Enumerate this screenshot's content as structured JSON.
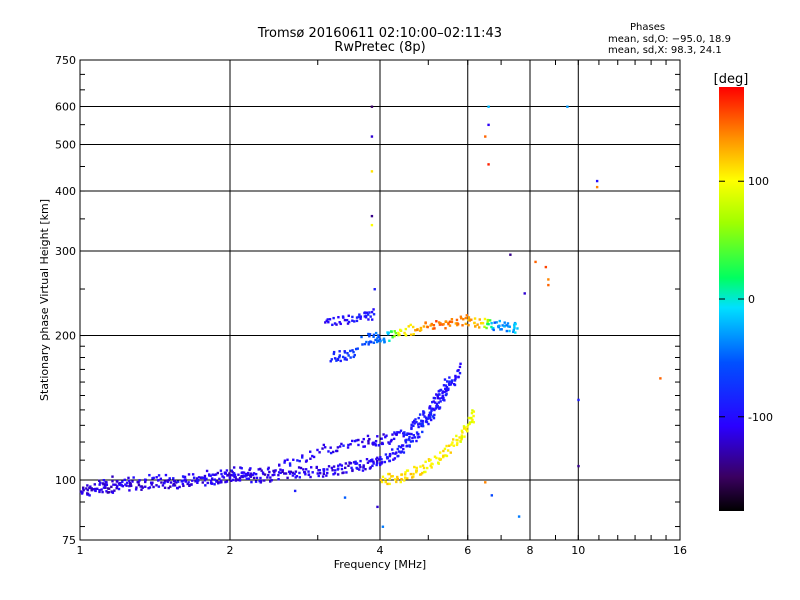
{
  "header": {
    "title": "Tromsø 20160611 02:10:00–02:11:43",
    "subtitle": "RwPretec (8p)"
  },
  "phases_box": {
    "title": "Phases",
    "line_o": "mean, sd,O: −95.0, 18.9",
    "line_x": "mean, sd,X:  98.3, 24.1"
  },
  "colorbar": {
    "unit": "[deg]",
    "range": [
      -180,
      180
    ],
    "ticks": [
      "100",
      "0",
      "-100"
    ],
    "tick_values": [
      100,
      0,
      -100
    ]
  },
  "chart_data": {
    "type": "scatter",
    "xlabel": "Frequency [MHz]",
    "ylabel": "Stationary phase Virtual Height [km]",
    "xscale": "log",
    "yscale": "log",
    "xlim": [
      1,
      16
    ],
    "ylim": [
      75,
      750
    ],
    "x_ticks": [
      "1",
      "2",
      "4",
      "6",
      "8",
      "10",
      "16"
    ],
    "x_tick_values": [
      1,
      2,
      4,
      6,
      8,
      10,
      16
    ],
    "y_ticks": [
      "75",
      "100",
      "200",
      "300",
      "400",
      "500",
      "600",
      "750"
    ],
    "y_tick_values": [
      75,
      100,
      200,
      300,
      400,
      500,
      600,
      750
    ],
    "grid": true,
    "color_encodes": "phase (deg)",
    "traces": [
      {
        "points": [
          [
            1.0,
            96,
            -120
          ],
          [
            1.05,
            95,
            -115
          ],
          [
            1.1,
            97,
            -110
          ],
          [
            1.15,
            96,
            -120
          ],
          [
            1.2,
            98,
            -105
          ],
          [
            1.3,
            97,
            -115
          ],
          [
            1.4,
            99,
            -110
          ],
          [
            1.5,
            98,
            -120
          ],
          [
            1.6,
            99,
            -110
          ],
          [
            1.7,
            100,
            -115
          ],
          [
            1.8,
            100,
            -105
          ],
          [
            1.9,
            101,
            -110
          ],
          [
            2.0,
            101,
            -115
          ],
          [
            2.1,
            102,
            -110
          ],
          [
            2.2,
            101,
            -105
          ],
          [
            2.4,
            102,
            -110
          ],
          [
            2.6,
            103,
            -115
          ],
          [
            2.8,
            104,
            -105
          ],
          [
            3.0,
            104,
            -110
          ],
          [
            3.2,
            105,
            -115
          ],
          [
            3.4,
            106,
            -110
          ],
          [
            3.6,
            107,
            -105
          ],
          [
            3.8,
            108,
            -110
          ],
          [
            4.0,
            110,
            -105
          ],
          [
            4.2,
            112,
            -100
          ],
          [
            4.4,
            116,
            -95
          ],
          [
            4.6,
            121,
            -90
          ],
          [
            4.8,
            127,
            -85
          ],
          [
            5.0,
            134,
            -85
          ],
          [
            5.2,
            142,
            -90
          ],
          [
            5.4,
            151,
            -90
          ],
          [
            5.6,
            161,
            -95
          ],
          [
            5.8,
            172,
            -95
          ]
        ]
      },
      {
        "points": [
          [
            1.1,
            99,
            -110
          ],
          [
            1.3,
            100,
            -115
          ],
          [
            1.6,
            101,
            -100
          ],
          [
            1.9,
            103,
            -105
          ],
          [
            2.1,
            104,
            -110
          ],
          [
            2.3,
            103,
            -120
          ],
          [
            2.6,
            108,
            -95
          ],
          [
            3.0,
            115,
            -110
          ],
          [
            3.4,
            118,
            -100
          ],
          [
            3.8,
            121,
            -110
          ],
          [
            4.0,
            121,
            -105
          ],
          [
            4.3,
            123,
            -100
          ],
          [
            4.6,
            128,
            -95
          ],
          [
            4.9,
            136,
            -90
          ],
          [
            5.1,
            143,
            -95
          ],
          [
            5.3,
            152,
            -100
          ],
          [
            5.5,
            162,
            -100
          ]
        ]
      },
      {
        "points": [
          [
            4.0,
            100,
            110
          ],
          [
            4.3,
            101,
            115
          ],
          [
            4.6,
            103,
            110
          ],
          [
            4.9,
            106,
            105
          ],
          [
            5.2,
            110,
            100
          ],
          [
            5.5,
            116,
            105
          ],
          [
            5.8,
            123,
            100
          ],
          [
            6.0,
            130,
            95
          ],
          [
            6.2,
            138,
            100
          ]
        ]
      },
      {
        "points": [
          [
            3.7,
            196,
            -60
          ],
          [
            3.9,
            198,
            -50
          ],
          [
            4.1,
            199,
            -40
          ],
          [
            4.4,
            203,
            100
          ],
          [
            4.8,
            208,
            130
          ],
          [
            5.2,
            211,
            150
          ],
          [
            5.6,
            214,
            140
          ],
          [
            6.0,
            216,
            130
          ],
          [
            6.4,
            212,
            120
          ],
          [
            6.8,
            210,
            -40
          ],
          [
            7.2,
            209,
            -30
          ],
          [
            7.6,
            207,
            -10
          ]
        ]
      },
      {
        "points": [
          [
            3.2,
            180,
            -90
          ],
          [
            3.4,
            182,
            -80
          ],
          [
            3.6,
            184,
            -70
          ]
        ]
      },
      {
        "points": [
          [
            3.1,
            214,
            -110
          ],
          [
            3.4,
            217,
            -100
          ],
          [
            3.7,
            219,
            -95
          ],
          [
            3.9,
            222,
            -90
          ]
        ]
      }
    ],
    "scattered": [
      [
        3.85,
        600,
        -150
      ],
      [
        3.85,
        520,
        -120
      ],
      [
        3.85,
        440,
        110
      ],
      [
        3.85,
        355,
        -140
      ],
      [
        3.85,
        340,
        100
      ],
      [
        3.9,
        250,
        -90
      ],
      [
        6.6,
        600,
        -20
      ],
      [
        6.6,
        550,
        -110
      ],
      [
        6.5,
        520,
        150
      ],
      [
        6.6,
        455,
        170
      ],
      [
        9.5,
        600,
        -30
      ],
      [
        10.9,
        420,
        -100
      ],
      [
        10.9,
        408,
        140
      ],
      [
        7.3,
        295,
        -140
      ],
      [
        8.2,
        285,
        150
      ],
      [
        8.6,
        278,
        160
      ],
      [
        8.7,
        262,
        140
      ],
      [
        8.7,
        255,
        150
      ],
      [
        7.8,
        245,
        -120
      ],
      [
        14.6,
        163,
        150
      ],
      [
        10.0,
        147,
        -90
      ],
      [
        10.0,
        107,
        -140
      ],
      [
        7.6,
        84,
        -40
      ],
      [
        4.05,
        80,
        -40
      ],
      [
        3.95,
        88,
        -120
      ],
      [
        3.4,
        92,
        -50
      ],
      [
        6.7,
        93,
        -60
      ],
      [
        6.5,
        99,
        140
      ],
      [
        2.7,
        95,
        -90
      ]
    ]
  }
}
